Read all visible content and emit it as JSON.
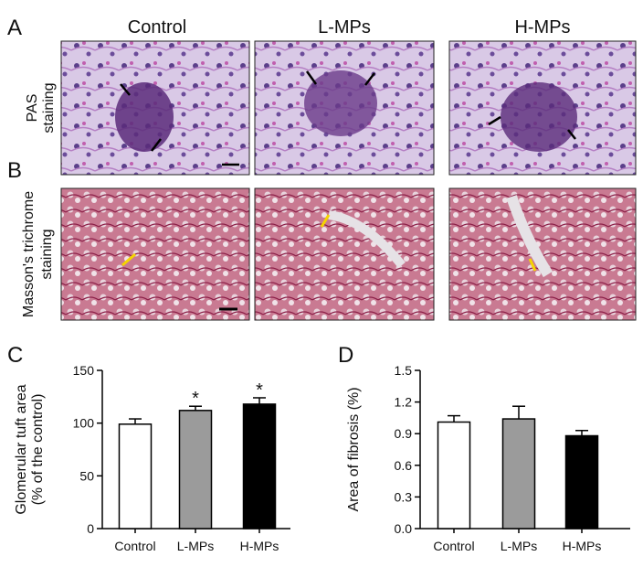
{
  "panel_labels": [
    "A",
    "B",
    "C",
    "D"
  ],
  "columns": [
    "Control",
    "L-MPs",
    "H-MPs"
  ],
  "row_labels": [
    [
      "PAS",
      "staining"
    ],
    [
      "Masson's trichrome",
      "staining"
    ]
  ],
  "chart_data": [
    {
      "type": "bar",
      "y_label": [
        "Glomerular tuft area",
        "(% of the control)"
      ],
      "categories": [
        "Control",
        "L-MPs",
        "H-MPs"
      ],
      "values": [
        99,
        112,
        118
      ],
      "errors": [
        5,
        4,
        6
      ],
      "significance": [
        null,
        "*",
        "*"
      ],
      "colors": [
        "#ffffff",
        "#9b9b9b",
        "#000000"
      ],
      "ylim": [
        0,
        150
      ],
      "yticks": [
        0,
        50,
        100,
        150
      ]
    },
    {
      "type": "bar",
      "y_label": [
        "Area of fibrosis (%)"
      ],
      "categories": [
        "Control",
        "L-MPs",
        "H-MPs"
      ],
      "values": [
        1.01,
        1.04,
        0.88
      ],
      "errors": [
        0.06,
        0.12,
        0.05
      ],
      "colors": [
        "#ffffff",
        "#9b9b9b",
        "#000000"
      ],
      "ylim": [
        0,
        1.5
      ],
      "yticks": [
        {
          "value": 0,
          "label": "0.0"
        },
        0.3,
        0.6,
        0.9,
        1.2,
        1.5
      ]
    }
  ]
}
